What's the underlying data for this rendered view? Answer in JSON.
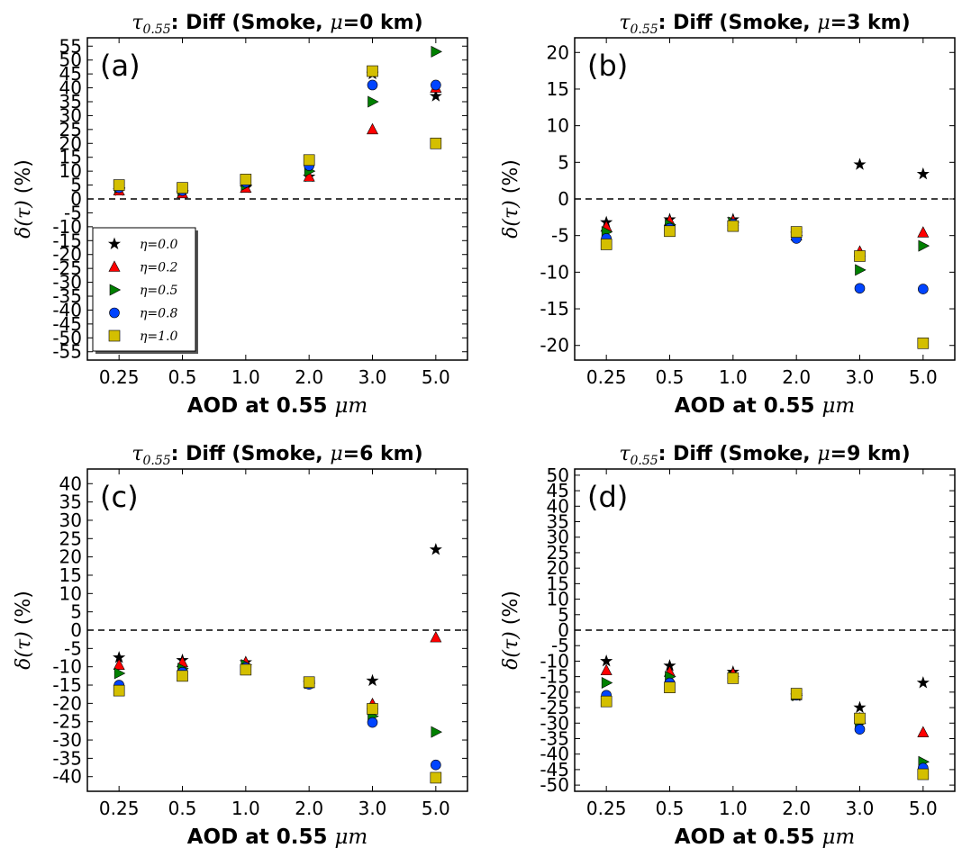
{
  "chart_data": [
    {
      "type": "scatter",
      "panel_label": "(a)",
      "title_prefix": "τ",
      "title_sub": "0.55",
      "title_main": ": Diff (Smoke, ",
      "title_mu": "μ",
      "title_suffix": "=0 km)",
      "xlabel": "AOD at 0.55 ",
      "xlabel_unit": "μm",
      "ylabel_prefix": "δ(τ)",
      "ylabel_suffix": " (%)",
      "categories": [
        "0.25",
        "0.5",
        "1.0",
        "2.0",
        "3.0",
        "5.0"
      ],
      "ylim": [
        -58,
        58
      ],
      "yticks": [
        -55,
        -50,
        -45,
        -40,
        -35,
        -30,
        -25,
        -20,
        -15,
        -10,
        -5,
        0,
        5,
        10,
        15,
        20,
        25,
        30,
        35,
        40,
        45,
        50,
        55
      ],
      "legend": true,
      "series": [
        {
          "name": "η=0.0",
          "values": [
            3,
            2,
            4,
            8,
            45,
            37
          ]
        },
        {
          "name": "η=0.2",
          "values": [
            3,
            2,
            4,
            8,
            25,
            40
          ]
        },
        {
          "name": "η=0.5",
          "values": [
            4,
            3,
            5,
            10,
            35,
            53
          ]
        },
        {
          "name": "η=0.8",
          "values": [
            4,
            3,
            6,
            12,
            41,
            41
          ]
        },
        {
          "name": "η=1.0",
          "values": [
            5,
            4,
            7,
            14,
            46,
            20
          ]
        }
      ]
    },
    {
      "type": "scatter",
      "panel_label": "(b)",
      "title_prefix": "τ",
      "title_sub": "0.55",
      "title_main": ": Diff (Smoke, ",
      "title_mu": "μ",
      "title_suffix": "=3 km)",
      "xlabel": "AOD at 0.55 ",
      "xlabel_unit": "μm",
      "ylabel_prefix": "δ(τ)",
      "ylabel_suffix": " (%)",
      "categories": [
        "0.25",
        "0.5",
        "1.0",
        "2.0",
        "3.0",
        "5.0"
      ],
      "ylim": [
        -22,
        22
      ],
      "yticks": [
        -20,
        -15,
        -10,
        -5,
        0,
        5,
        10,
        15,
        20
      ],
      "legend": false,
      "series": [
        {
          "name": "η=0.0",
          "values": [
            -3.2,
            -2.8,
            -2.8,
            -4.8,
            4.7,
            3.4
          ]
        },
        {
          "name": "η=0.2",
          "values": [
            -3.8,
            -3.0,
            -3.0,
            -5.0,
            -7.2,
            -4.6
          ]
        },
        {
          "name": "η=0.5",
          "values": [
            -4.5,
            -3.5,
            -3.2,
            -5.0,
            -9.7,
            -6.4
          ]
        },
        {
          "name": "η=0.8",
          "values": [
            -5.4,
            -4.0,
            -3.4,
            -5.4,
            -12.2,
            -12.3
          ]
        },
        {
          "name": "η=1.0",
          "values": [
            -6.2,
            -4.4,
            -3.7,
            -4.5,
            -7.8,
            -19.7
          ]
        }
      ]
    },
    {
      "type": "scatter",
      "panel_label": "(c)",
      "title_prefix": "τ",
      "title_sub": "0.55",
      "title_main": ": Diff (Smoke, ",
      "title_mu": "μ",
      "title_suffix": "=6 km)",
      "xlabel": "AOD at 0.55 ",
      "xlabel_unit": "μm",
      "ylabel_prefix": "δ(τ)",
      "ylabel_suffix": " (%)",
      "categories": [
        "0.25",
        "0.5",
        "1.0",
        "2.0",
        "3.0",
        "5.0"
      ],
      "ylim": [
        -44,
        44
      ],
      "yticks": [
        -40,
        -35,
        -30,
        -25,
        -20,
        -15,
        -10,
        -5,
        0,
        5,
        10,
        15,
        20,
        25,
        30,
        35,
        40
      ],
      "legend": false,
      "series": [
        {
          "name": "η=0.0",
          "values": [
            -7.5,
            -8.2,
            -8.8,
            -14.5,
            -13.8,
            22.0
          ]
        },
        {
          "name": "η=0.2",
          "values": [
            -9.5,
            -8.8,
            -8.8,
            -14.5,
            -20.2,
            -2.0
          ]
        },
        {
          "name": "η=0.5",
          "values": [
            -11.8,
            -10.5,
            -9.5,
            -14.5,
            -23.5,
            -27.8
          ]
        },
        {
          "name": "η=0.8",
          "values": [
            -15.0,
            -11.5,
            -10.2,
            -14.8,
            -25.2,
            -36.8
          ]
        },
        {
          "name": "η=1.0",
          "values": [
            -16.5,
            -12.5,
            -10.8,
            -14.2,
            -21.5,
            -40.3
          ]
        }
      ]
    },
    {
      "type": "scatter",
      "panel_label": "(d)",
      "title_prefix": "τ",
      "title_sub": "0.55",
      "title_main": ": Diff (Smoke, ",
      "title_mu": "μ",
      "title_suffix": "=9 km)",
      "xlabel": "AOD at 0.55 ",
      "xlabel_unit": "μm",
      "ylabel_prefix": "δ(τ)",
      "ylabel_suffix": " (%)",
      "categories": [
        "0.25",
        "0.5",
        "1.0",
        "2.0",
        "3.0",
        "5.0"
      ],
      "ylim": [
        -52,
        52
      ],
      "yticks": [
        -50,
        -45,
        -40,
        -35,
        -30,
        -25,
        -20,
        -15,
        -10,
        -5,
        0,
        5,
        10,
        15,
        20,
        25,
        30,
        35,
        40,
        45,
        50
      ],
      "legend": false,
      "series": [
        {
          "name": "η=0.0",
          "values": [
            -10.0,
            -11.5,
            -13.5,
            -21.2,
            -25.0,
            -17.0
          ]
        },
        {
          "name": "η=0.2",
          "values": [
            -13.0,
            -13.5,
            -14.0,
            -21.0,
            -28.5,
            -33.0
          ]
        },
        {
          "name": "η=0.5",
          "values": [
            -17.0,
            -15.0,
            -15.0,
            -21.0,
            -30.0,
            -42.5
          ]
        },
        {
          "name": "η=0.8",
          "values": [
            -21.0,
            -17.0,
            -15.5,
            -21.0,
            -32.0,
            -44.5
          ]
        },
        {
          "name": "η=1.0",
          "values": [
            -23.0,
            -18.5,
            -15.5,
            -20.5,
            -28.5,
            -46.5
          ]
        }
      ]
    }
  ],
  "colors": {
    "η=0.0": "#000000",
    "η=0.2": "#ff0000",
    "η=0.5": "#008000",
    "η=0.8": "#0044ff",
    "η=1.0": "#d4bf00"
  },
  "markers": [
    "star",
    "triangle-up",
    "triangle-right",
    "circle",
    "square"
  ]
}
